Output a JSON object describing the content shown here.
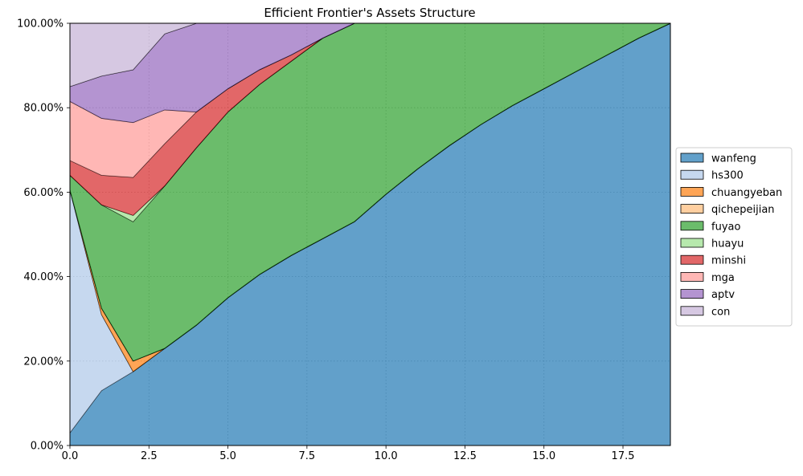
{
  "chart_data": {
    "type": "area",
    "stacked": true,
    "title": "Efficient Frontier's Assets Structure",
    "xlabel": "",
    "ylabel": "",
    "xlim": [
      0,
      19
    ],
    "ylim": [
      0,
      100
    ],
    "y_format": "percent",
    "grid": true,
    "legend_position": "center-right-outside",
    "x_ticks": [
      "0.0",
      "2.5",
      "5.0",
      "7.5",
      "10.0",
      "12.5",
      "15.0",
      "17.5"
    ],
    "y_ticks": [
      "0.00%",
      "20.00%",
      "40.00%",
      "60.00%",
      "80.00%",
      "100.00%"
    ],
    "x": [
      0,
      1,
      2,
      3,
      4,
      5,
      6,
      7,
      8,
      9,
      10,
      11,
      12,
      13,
      14,
      15,
      16,
      17,
      18,
      19
    ],
    "series": [
      {
        "name": "wanfeng",
        "color": "#1f77b4",
        "values": [
          3,
          13,
          17.5,
          23,
          28.5,
          35,
          40.5,
          45,
          49,
          53,
          59.5,
          65.5,
          71,
          76,
          80.5,
          84.5,
          88.5,
          92.5,
          96.5,
          100
        ]
      },
      {
        "name": "hs300",
        "color": "#aec7e8",
        "values": [
          57.5,
          18,
          0,
          0,
          0,
          0,
          0,
          0,
          0,
          0,
          0,
          0,
          0,
          0,
          0,
          0,
          0,
          0,
          0,
          0
        ]
      },
      {
        "name": "chuangyeban",
        "color": "#ff7f0e",
        "values": [
          0,
          1.5,
          2.5,
          0,
          0,
          0,
          0,
          0,
          0,
          0,
          0,
          0,
          0,
          0,
          0,
          0,
          0,
          0,
          0,
          0
        ]
      },
      {
        "name": "qichepeijian",
        "color": "#ffbb78",
        "values": [
          0,
          0,
          0,
          0,
          0,
          0,
          0,
          0,
          0,
          0,
          0,
          0,
          0,
          0,
          0,
          0,
          0,
          0,
          0,
          0
        ]
      },
      {
        "name": "fuyao",
        "color": "#2ca02c",
        "values": [
          3.5,
          24.5,
          33,
          38.5,
          42,
          44,
          45,
          46,
          47.5,
          47,
          40.5,
          34.5,
          29,
          24,
          19.5,
          15.5,
          11.5,
          7.5,
          3.5,
          0
        ]
      },
      {
        "name": "huayu",
        "color": "#98df8a",
        "values": [
          0,
          0,
          1.5,
          0,
          0,
          0,
          0,
          0,
          0,
          0,
          0,
          0,
          0,
          0,
          0,
          0,
          0,
          0,
          0,
          0
        ]
      },
      {
        "name": "minshi",
        "color": "#d62728",
        "values": [
          3.5,
          7,
          9,
          10,
          8.5,
          5.5,
          3.5,
          1.5,
          0,
          0,
          0,
          0,
          0,
          0,
          0,
          0,
          0,
          0,
          0,
          0
        ]
      },
      {
        "name": "mga",
        "color": "#ff9896",
        "values": [
          14,
          13.5,
          13,
          8,
          0,
          0,
          0,
          0,
          0,
          0,
          0,
          0,
          0,
          0,
          0,
          0,
          0,
          0,
          0,
          0
        ]
      },
      {
        "name": "aptv",
        "color": "#9467bd",
        "values": [
          3.5,
          10,
          12.5,
          18,
          21,
          15.5,
          11,
          7.5,
          3.5,
          0,
          0,
          0,
          0,
          0,
          0,
          0,
          0,
          0,
          0,
          0
        ]
      },
      {
        "name": "con",
        "color": "#c5b0d5",
        "values": [
          15,
          12.5,
          11,
          2.5,
          0,
          0,
          0,
          0,
          0,
          0,
          0,
          0,
          0,
          0,
          0,
          0,
          0,
          0,
          0,
          0
        ]
      }
    ]
  }
}
